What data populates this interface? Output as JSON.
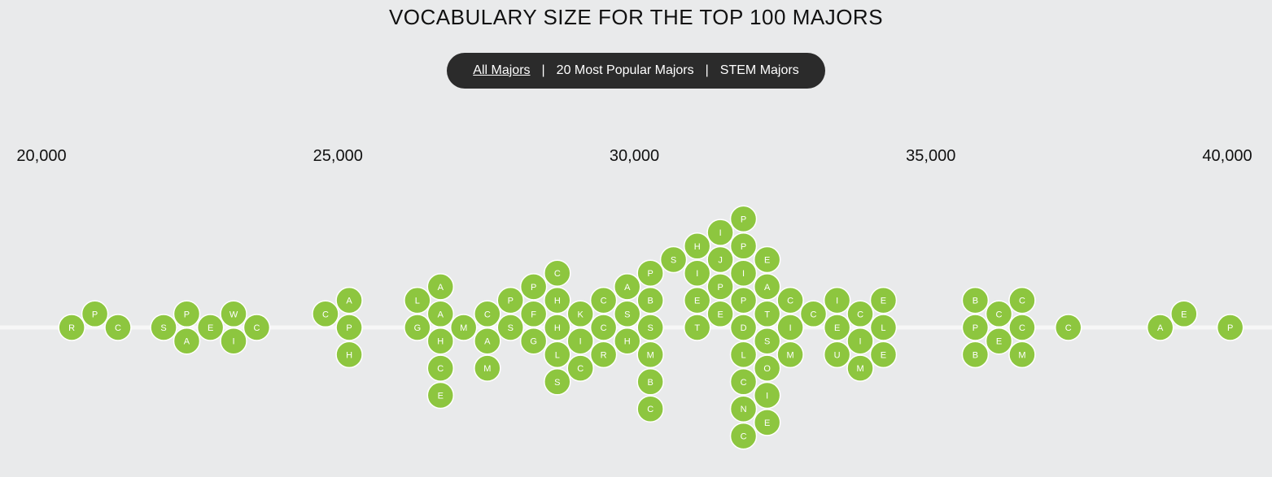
{
  "filters": [
    {
      "label": "All Majors",
      "active": true
    },
    {
      "label": "20 Most Popular Majors",
      "active": false
    },
    {
      "label": "STEM Majors",
      "active": false
    }
  ],
  "colors": {
    "bubble": "#8dc63f",
    "background": "#e9eaeb",
    "bar": "#2b2b2b"
  },
  "chart_data": {
    "type": "scatter",
    "title": "VOCABULARY SIZE FOR THE TOP 100 MAJORS",
    "xlim": [
      20000,
      40000
    ],
    "ticks": [
      {
        "value": 20000,
        "label": "20,000"
      },
      {
        "value": 25000,
        "label": "25,000"
      },
      {
        "value": 30000,
        "label": "30,000"
      },
      {
        "value": 35000,
        "label": "35,000"
      },
      {
        "value": 40000,
        "label": "40,000"
      }
    ],
    "grid": false,
    "points": [
      {
        "label": "R",
        "x": 20510,
        "stack": 0
      },
      {
        "label": "P",
        "x": 20900,
        "stack": 1
      },
      {
        "label": "C",
        "x": 21290,
        "stack": 0
      },
      {
        "label": "S",
        "x": 22060,
        "stack": 0
      },
      {
        "label": "P",
        "x": 22450,
        "stack": 1
      },
      {
        "label": "A",
        "x": 22450,
        "stack": -1
      },
      {
        "label": "E",
        "x": 22850,
        "stack": 0
      },
      {
        "label": "W",
        "x": 23240,
        "stack": 1
      },
      {
        "label": "I",
        "x": 23240,
        "stack": -1
      },
      {
        "label": "C",
        "x": 23630,
        "stack": 0
      },
      {
        "label": "C",
        "x": 24790,
        "stack": 1
      },
      {
        "label": "A",
        "x": 25190,
        "stack": 2
      },
      {
        "label": "P",
        "x": 25190,
        "stack": 0
      },
      {
        "label": "H",
        "x": 25190,
        "stack": -2
      },
      {
        "label": "L",
        "x": 26340,
        "stack": 2
      },
      {
        "label": "G",
        "x": 26340,
        "stack": 0
      },
      {
        "label": "A",
        "x": 26730,
        "stack": 3
      },
      {
        "label": "A",
        "x": 26730,
        "stack": 1
      },
      {
        "label": "H",
        "x": 26730,
        "stack": -1
      },
      {
        "label": "C",
        "x": 26730,
        "stack": -3
      },
      {
        "label": "E",
        "x": 26730,
        "stack": -5
      },
      {
        "label": "M",
        "x": 27120,
        "stack": 0
      },
      {
        "label": "C",
        "x": 27520,
        "stack": 1
      },
      {
        "label": "A",
        "x": 27520,
        "stack": -1
      },
      {
        "label": "M",
        "x": 27520,
        "stack": -3
      },
      {
        "label": "P",
        "x": 27910,
        "stack": 2
      },
      {
        "label": "S",
        "x": 27910,
        "stack": 0
      },
      {
        "label": "P",
        "x": 28300,
        "stack": 3
      },
      {
        "label": "F",
        "x": 28300,
        "stack": 1
      },
      {
        "label": "G",
        "x": 28300,
        "stack": -1
      },
      {
        "label": "C",
        "x": 28700,
        "stack": 4
      },
      {
        "label": "H",
        "x": 28700,
        "stack": 2
      },
      {
        "label": "H",
        "x": 28700,
        "stack": 0
      },
      {
        "label": "L",
        "x": 28700,
        "stack": -2
      },
      {
        "label": "S",
        "x": 28700,
        "stack": -4
      },
      {
        "label": "K",
        "x": 29090,
        "stack": 1
      },
      {
        "label": "I",
        "x": 29090,
        "stack": -1
      },
      {
        "label": "C",
        "x": 29090,
        "stack": -3
      },
      {
        "label": "C",
        "x": 29480,
        "stack": 2
      },
      {
        "label": "C",
        "x": 29480,
        "stack": 0
      },
      {
        "label": "R",
        "x": 29480,
        "stack": -2
      },
      {
        "label": "A",
        "x": 29880,
        "stack": 3
      },
      {
        "label": "S",
        "x": 29880,
        "stack": 1
      },
      {
        "label": "H",
        "x": 29880,
        "stack": -1
      },
      {
        "label": "P",
        "x": 30270,
        "stack": 4
      },
      {
        "label": "B",
        "x": 30270,
        "stack": 2
      },
      {
        "label": "S",
        "x": 30270,
        "stack": 0
      },
      {
        "label": "M",
        "x": 30270,
        "stack": -2
      },
      {
        "label": "B",
        "x": 30270,
        "stack": -4
      },
      {
        "label": "C",
        "x": 30270,
        "stack": -6
      },
      {
        "label": "S",
        "x": 30660,
        "stack": 5
      },
      {
        "label": "H",
        "x": 31060,
        "stack": 6
      },
      {
        "label": "I",
        "x": 31060,
        "stack": 4
      },
      {
        "label": "E",
        "x": 31060,
        "stack": 2
      },
      {
        "label": "T",
        "x": 31060,
        "stack": 0
      },
      {
        "label": "I",
        "x": 31450,
        "stack": 7
      },
      {
        "label": "J",
        "x": 31450,
        "stack": 5
      },
      {
        "label": "P",
        "x": 31450,
        "stack": 3
      },
      {
        "label": "E",
        "x": 31450,
        "stack": 1
      },
      {
        "label": "P",
        "x": 31840,
        "stack": 8
      },
      {
        "label": "P",
        "x": 31840,
        "stack": 6
      },
      {
        "label": "I",
        "x": 31840,
        "stack": 4
      },
      {
        "label": "P",
        "x": 31840,
        "stack": 2
      },
      {
        "label": "D",
        "x": 31840,
        "stack": 0
      },
      {
        "label": "L",
        "x": 31840,
        "stack": -2
      },
      {
        "label": "C",
        "x": 31840,
        "stack": -4
      },
      {
        "label": "N",
        "x": 31840,
        "stack": -6
      },
      {
        "label": "C",
        "x": 31840,
        "stack": -8
      },
      {
        "label": "E",
        "x": 32240,
        "stack": 5
      },
      {
        "label": "A",
        "x": 32240,
        "stack": 3
      },
      {
        "label": "T",
        "x": 32240,
        "stack": 1
      },
      {
        "label": "S",
        "x": 32240,
        "stack": -1
      },
      {
        "label": "O",
        "x": 32240,
        "stack": -3
      },
      {
        "label": "I",
        "x": 32240,
        "stack": -5
      },
      {
        "label": "E",
        "x": 32240,
        "stack": -7
      },
      {
        "label": "C",
        "x": 32630,
        "stack": 2
      },
      {
        "label": "I",
        "x": 32630,
        "stack": 0
      },
      {
        "label": "M",
        "x": 32630,
        "stack": -2
      },
      {
        "label": "C",
        "x": 33020,
        "stack": 1
      },
      {
        "label": "I",
        "x": 33420,
        "stack": 2
      },
      {
        "label": "E",
        "x": 33420,
        "stack": 0
      },
      {
        "label": "U",
        "x": 33420,
        "stack": -2
      },
      {
        "label": "C",
        "x": 33810,
        "stack": 1
      },
      {
        "label": "I",
        "x": 33810,
        "stack": -1
      },
      {
        "label": "M",
        "x": 33810,
        "stack": -3
      },
      {
        "label": "E",
        "x": 34200,
        "stack": 2
      },
      {
        "label": "L",
        "x": 34200,
        "stack": 0
      },
      {
        "label": "E",
        "x": 34200,
        "stack": -2
      },
      {
        "label": "B",
        "x": 35750,
        "stack": 2
      },
      {
        "label": "P",
        "x": 35750,
        "stack": 0
      },
      {
        "label": "B",
        "x": 35750,
        "stack": -2
      },
      {
        "label": "C",
        "x": 36150,
        "stack": 1
      },
      {
        "label": "E",
        "x": 36150,
        "stack": -1
      },
      {
        "label": "C",
        "x": 36540,
        "stack": 2
      },
      {
        "label": "C",
        "x": 36540,
        "stack": 0
      },
      {
        "label": "M",
        "x": 36540,
        "stack": -2
      },
      {
        "label": "C",
        "x": 37320,
        "stack": 0
      },
      {
        "label": "A",
        "x": 38870,
        "stack": 0
      },
      {
        "label": "E",
        "x": 39270,
        "stack": 1
      },
      {
        "label": "P",
        "x": 40050,
        "stack": 0
      }
    ]
  }
}
